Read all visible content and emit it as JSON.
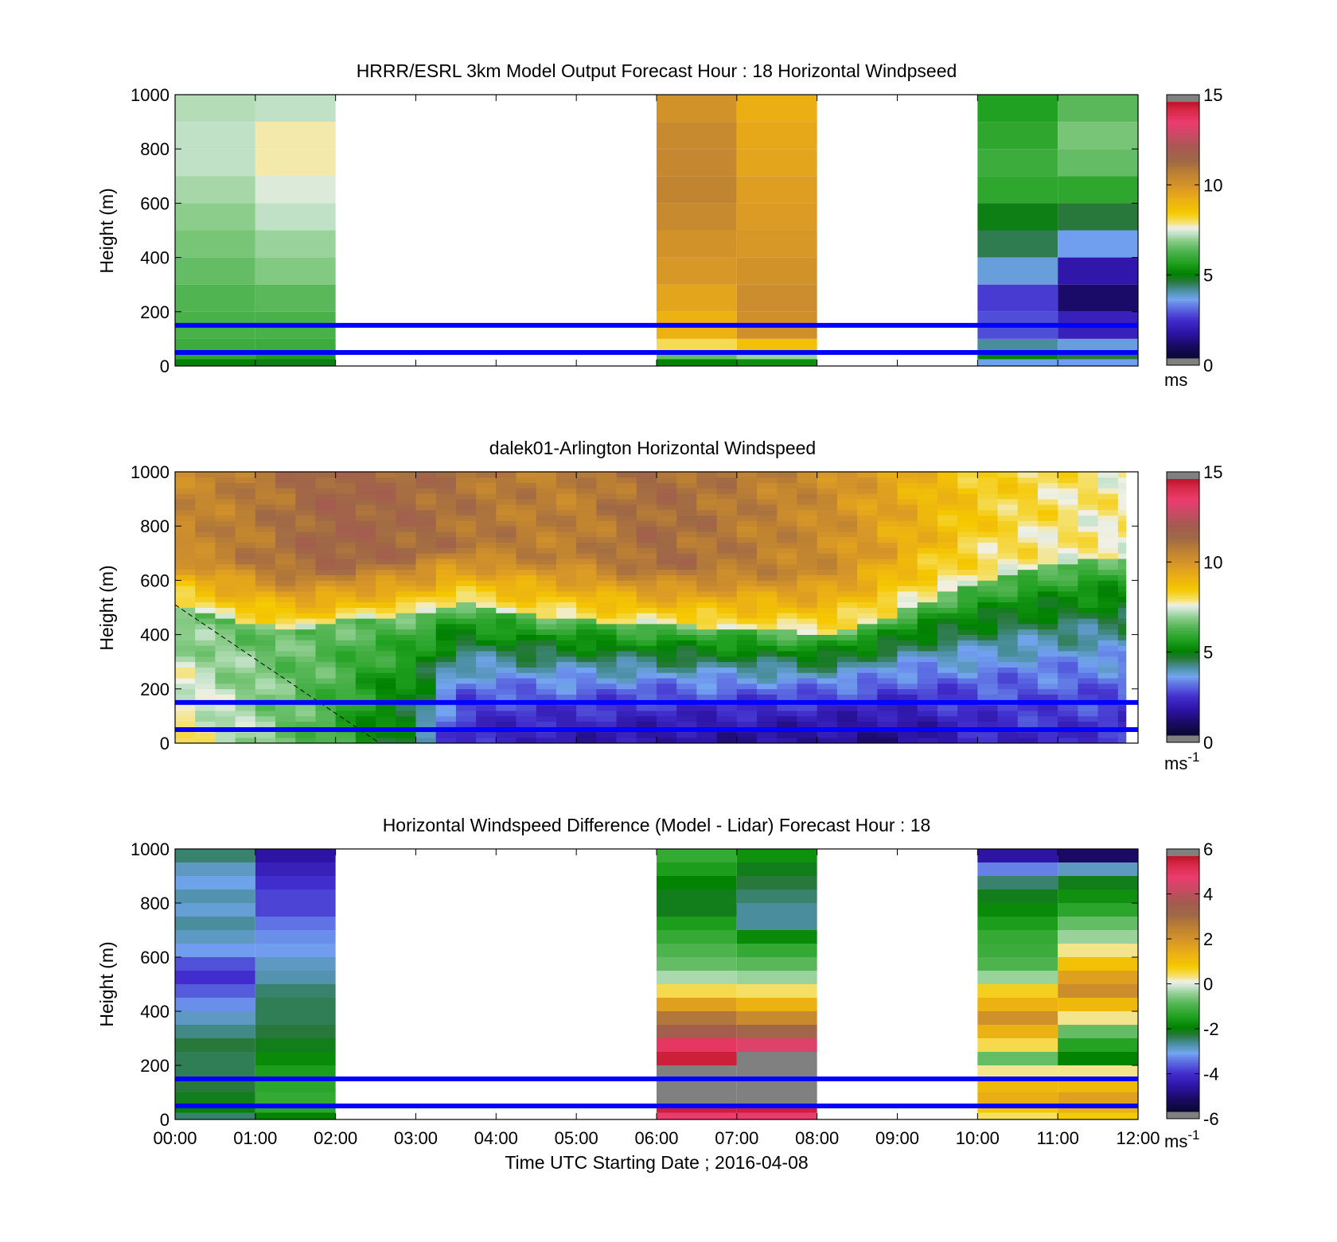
{
  "figure": {
    "xlabel": "Time UTC  Starting Date ; 2016-04-08",
    "x_ticks": [
      "00:00",
      "01:00",
      "02:00",
      "03:00",
      "04:00",
      "05:00",
      "06:00",
      "07:00",
      "08:00",
      "09:00",
      "10:00",
      "11:00",
      "12:00"
    ],
    "ylabel": "Height (m)",
    "y_ticks": [
      "1000",
      "800",
      "600",
      "400",
      "200",
      "0"
    ],
    "reference_lines_m": [
      150,
      50
    ],
    "reference_line_color": "#0000ff"
  },
  "chart_data": [
    {
      "type": "heatmap",
      "title": "HRRR/ESRL 3km Model Output   Forecast Hour : 18 Horizontal Windpseed",
      "xlabel": "",
      "ylabel": "Height (m)",
      "xlim_hours": [
        0,
        12
      ],
      "ylim": [
        0,
        1000
      ],
      "value_range": [
        0,
        15
      ],
      "colorbar_ticks": [
        "15",
        "10",
        "5",
        "0"
      ],
      "colorbar_unit": "ms",
      "colorbar_unit_sup": "",
      "heights_m": [
        1000,
        900,
        800,
        700,
        600,
        500,
        400,
        300,
        200,
        100,
        50,
        25
      ],
      "columns": [
        {
          "start_hour": 0,
          "end_hour": 1,
          "values": [
            7.2,
            7.3,
            7.3,
            7.1,
            6.9,
            6.7,
            6.5,
            6.3,
            6.2,
            6.0,
            5.8,
            4.9
          ]
        },
        {
          "start_hour": 1,
          "end_hour": 2,
          "values": [
            7.3,
            7.8,
            7.8,
            7.5,
            7.3,
            7.0,
            6.8,
            6.4,
            6.2,
            6.0,
            5.5,
            4.8
          ]
        },
        {
          "start_hour": 6,
          "end_hour": 7,
          "values": [
            10.2,
            10.5,
            10.6,
            10.7,
            10.5,
            10.2,
            10.0,
            9.6,
            9.2,
            8.1,
            6.5,
            5.0
          ]
        },
        {
          "start_hour": 7,
          "end_hour": 8,
          "values": [
            9.3,
            9.5,
            9.6,
            9.8,
            9.9,
            10.0,
            10.2,
            10.4,
            10.3,
            8.8,
            7.0,
            5.2
          ]
        },
        {
          "start_hour": 10,
          "end_hour": 11,
          "values": [
            5.6,
            5.8,
            6.0,
            5.8,
            4.8,
            4.4,
            3.6,
            2.4,
            2.6,
            4.0,
            4.9,
            3.5
          ]
        },
        {
          "start_hour": 11,
          "end_hour": 12,
          "values": [
            6.4,
            6.7,
            6.5,
            5.8,
            4.5,
            3.4,
            1.6,
            0.8,
            1.9,
            3.6,
            4.5,
            3.4
          ]
        }
      ]
    },
    {
      "type": "heatmap",
      "title": "dalek01-Arlington  Horizontal Windspeed",
      "xlabel": "",
      "ylabel": "Height (m)",
      "xlim_hours": [
        0,
        12
      ],
      "ylim": [
        0,
        1000
      ],
      "value_range": [
        0,
        15
      ],
      "colorbar_ticks": [
        "15",
        "10",
        "5",
        "0"
      ],
      "colorbar_unit": "ms",
      "colorbar_unit_sup": "-1",
      "time_step_hours": 0.25,
      "end_hour": 11.85,
      "boundary_m": [
        [
          0.0,
          505
        ],
        [
          0.5,
          470
        ],
        [
          1.0,
          440
        ],
        [
          1.5,
          420
        ],
        [
          2.0,
          450
        ],
        [
          2.5,
          465
        ],
        [
          3.0,
          475
        ],
        [
          3.5,
          520
        ],
        [
          4.0,
          495
        ],
        [
          4.5,
          470
        ],
        [
          5.0,
          460
        ],
        [
          5.5,
          445
        ],
        [
          6.0,
          440
        ],
        [
          6.5,
          430
        ],
        [
          7.0,
          425
        ],
        [
          7.5,
          415
        ],
        [
          8.0,
          405
        ],
        [
          8.5,
          425
        ],
        [
          9.0,
          480
        ],
        [
          9.5,
          540
        ],
        [
          10.0,
          600
        ],
        [
          10.5,
          640
        ],
        [
          11.0,
          665
        ],
        [
          11.5,
          680
        ],
        [
          11.85,
          690
        ]
      ],
      "surface_value_m_s": [
        [
          0.0,
          8.0
        ],
        [
          0.5,
          7.5
        ],
        [
          1.0,
          7.0
        ],
        [
          1.5,
          6.5
        ],
        [
          2.0,
          6.0
        ],
        [
          2.5,
          5.0
        ],
        [
          3.0,
          4.5
        ],
        [
          3.5,
          2.0
        ],
        [
          6.0,
          1.5
        ],
        [
          9.0,
          1.2
        ],
        [
          10.0,
          2.0
        ],
        [
          11.85,
          2.2
        ]
      ],
      "aloft_value_m_s": [
        [
          0.0,
          10.5
        ],
        [
          1.0,
          11.0
        ],
        [
          2.0,
          11.8
        ],
        [
          3.0,
          11.5
        ],
        [
          4.0,
          11.0
        ],
        [
          5.0,
          10.8
        ],
        [
          6.0,
          11.5
        ],
        [
          7.0,
          11.0
        ],
        [
          8.0,
          10.5
        ],
        [
          9.0,
          9.5
        ],
        [
          10.0,
          8.5
        ],
        [
          11.0,
          8.0
        ],
        [
          11.85,
          7.8
        ]
      ],
      "annotation": {
        "type": "dashed-line",
        "from": [
          0.0,
          510
        ],
        "to": [
          2.55,
          0
        ],
        "color": "#000000"
      }
    },
    {
      "type": "heatmap",
      "title": "Horizontal Windspeed Difference (Model - Lidar) Forecast Hour : 18",
      "xlabel": "Time UTC  Starting Date ; 2016-04-08",
      "ylabel": "Height (m)",
      "xlim_hours": [
        0,
        12
      ],
      "ylim": [
        0,
        1000
      ],
      "value_range": [
        -6,
        6
      ],
      "colorbar_ticks": [
        "6",
        "4",
        "2",
        "0",
        "-2",
        "-4",
        "-6"
      ],
      "colorbar_unit": "ms",
      "colorbar_unit_sup": "-1",
      "heights_m": [
        1000,
        950,
        900,
        850,
        800,
        750,
        700,
        650,
        600,
        550,
        500,
        450,
        400,
        350,
        300,
        250,
        200,
        150,
        100,
        50,
        25
      ],
      "columns": [
        {
          "start_hour": 0,
          "end_hour": 1,
          "values": [
            -2.6,
            -3.0,
            -3.2,
            -2.9,
            -3.1,
            -2.8,
            -3.0,
            -3.3,
            -3.9,
            -4.2,
            -3.8,
            -3.4,
            -3.0,
            -2.7,
            -2.4,
            -2.5,
            -2.5,
            -2.4,
            -2.2,
            -2.0,
            -2.6
          ]
        },
        {
          "start_hour": 1,
          "end_hour": 2,
          "values": [
            -4.8,
            -4.5,
            -4.2,
            -4.0,
            -4.0,
            -3.6,
            -3.4,
            -3.3,
            -3.0,
            -2.9,
            -2.6,
            -2.5,
            -2.5,
            -2.4,
            -2.2,
            -1.9,
            -1.6,
            -1.4,
            -1.3,
            -1.4,
            -2.0
          ]
        },
        {
          "start_hour": 6,
          "end_hour": 7,
          "values": [
            -1.3,
            -1.6,
            -2.0,
            -2.2,
            -2.2,
            -1.6,
            -1.3,
            -1.0,
            -0.8,
            -0.3,
            0.5,
            1.8,
            2.9,
            3.7,
            5.2,
            5.8,
            -6.2,
            -6.2,
            -6.2,
            5.8,
            5.0
          ]
        },
        {
          "start_hour": 7,
          "end_hour": 8,
          "values": [
            -1.8,
            -2.2,
            -2.4,
            -2.6,
            -2.8,
            -2.8,
            -1.9,
            -1.3,
            -0.9,
            -0.4,
            0.4,
            1.4,
            2.4,
            3.4,
            4.8,
            -6.2,
            -6.2,
            -6.2,
            -6.2,
            5.8,
            5.0
          ]
        },
        {
          "start_hour": 10,
          "end_hour": 11,
          "values": [
            -4.8,
            -3.5,
            -2.6,
            -2.2,
            -1.9,
            -1.6,
            -1.3,
            -1.2,
            -1.0,
            -0.4,
            0.7,
            1.4,
            2.2,
            1.4,
            0.5,
            -0.8,
            0.3,
            1.2,
            1.5,
            0.9,
            0.4
          ]
        },
        {
          "start_hour": 11,
          "end_hour": 12,
          "values": [
            -5.4,
            -3.0,
            -2.2,
            -1.8,
            -1.4,
            -0.8,
            -0.4,
            0.3,
            1.0,
            1.8,
            2.3,
            1.2,
            0.3,
            -0.8,
            -1.5,
            -2.0,
            0.3,
            1.2,
            1.8,
            1.4,
            0.8
          ]
        }
      ]
    }
  ]
}
